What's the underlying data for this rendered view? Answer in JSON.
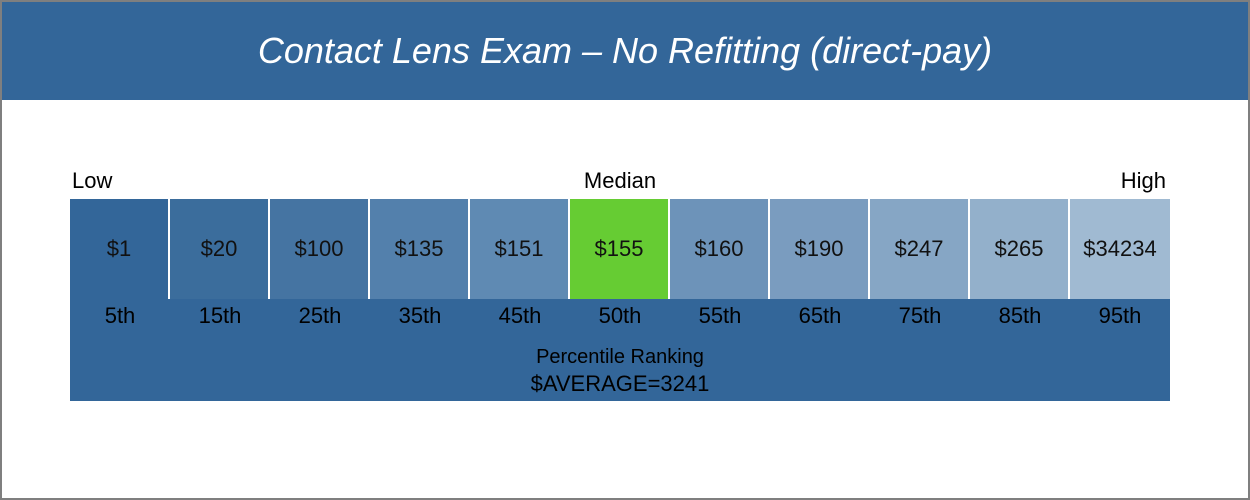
{
  "chart_data": {
    "type": "table",
    "title": "Contact Lens Exam – No Refitting (direct-pay)",
    "scale_labels": {
      "low": "Low",
      "median": "Median",
      "high": "High"
    },
    "percentiles": [
      "5th",
      "15th",
      "25th",
      "35th",
      "45th",
      "50th",
      "55th",
      "65th",
      "75th",
      "85th",
      "95th"
    ],
    "values": [
      "$1",
      "$20",
      "$100",
      "$135",
      "$151",
      "$155",
      "$160",
      "$190",
      "$247",
      "$265",
      "$34234"
    ],
    "xlabel": "Percentile Ranking",
    "average_label": "$AVERAGE=3241",
    "highlight_index": 5
  },
  "colors": {
    "header": "#336699",
    "footer": "#336699",
    "highlight": "#66cc33",
    "cells": [
      "#336699",
      "#3b6d9c",
      "#4574a2",
      "#5380ac",
      "#5f8ab3",
      "#66cc33",
      "#6d93b9",
      "#7a9cbf",
      "#86a6c5",
      "#93b0cb",
      "#a0bad2"
    ]
  }
}
